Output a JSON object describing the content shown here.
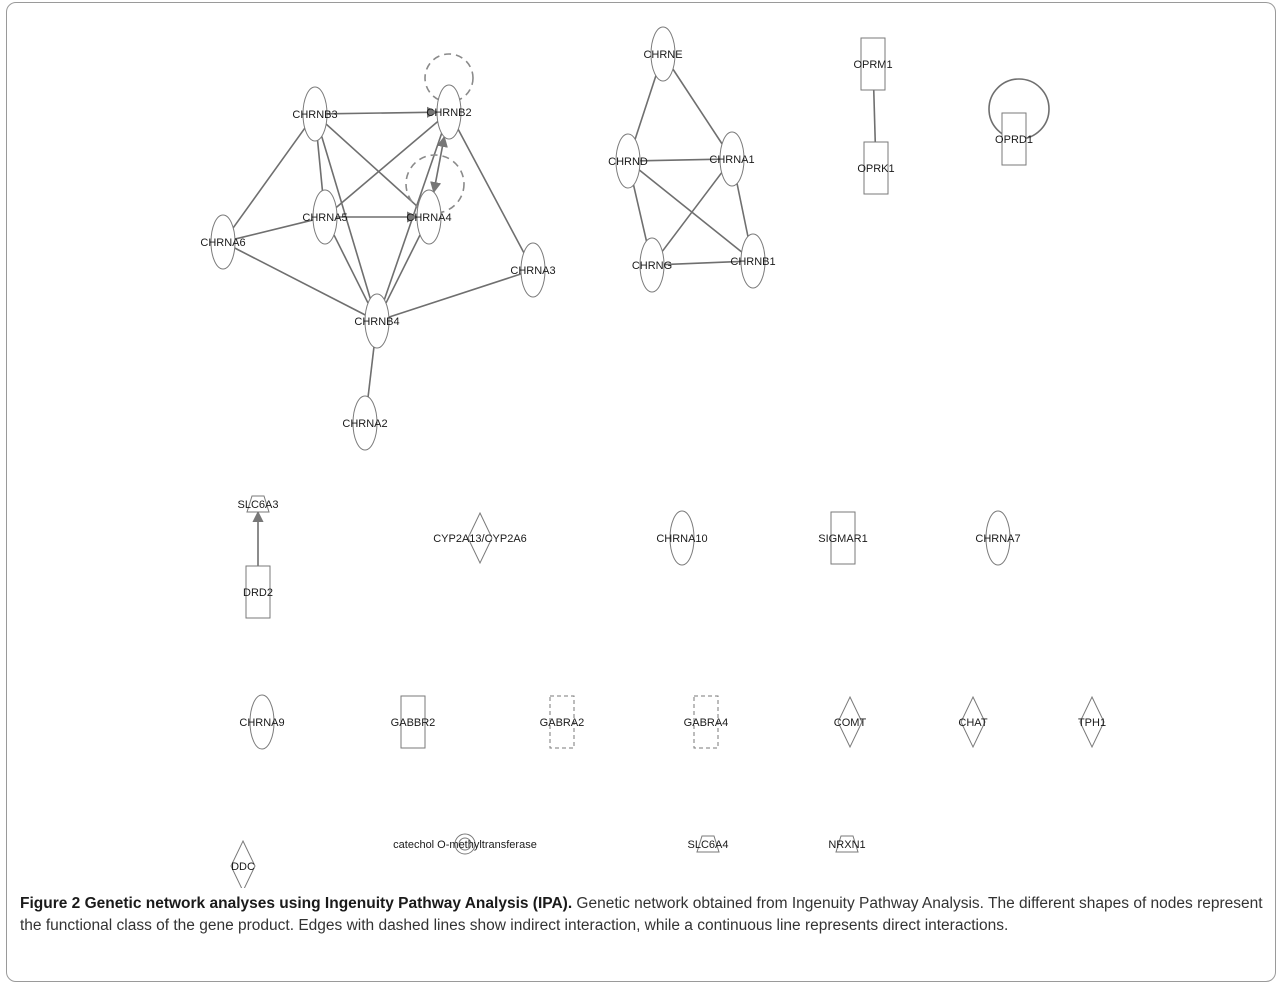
{
  "figure": {
    "caption_title": "Figure 2 Genetic network analyses using Ingenuity Pathway Analysis (IPA).",
    "caption_body": " Genetic network obtained from Ingenuity Pathway Analysis. The different shapes of nodes represent the functional class of the gene product. Edges with dashed lines show indirect interaction, while a continuous line represents direct interactions."
  },
  "network": {
    "nodes": [
      {
        "id": "CHRNB3",
        "label": "CHRNB3",
        "shape": "ellipse"
      },
      {
        "id": "CHRNB2",
        "label": "CHRNB2",
        "shape": "ellipse",
        "self_loop": "dashed"
      },
      {
        "id": "CHRNA5",
        "label": "CHRNA5",
        "shape": "ellipse"
      },
      {
        "id": "CHRNA4",
        "label": "CHRNA4",
        "shape": "ellipse",
        "self_loop": "dashed"
      },
      {
        "id": "CHRNA6",
        "label": "CHRNA6",
        "shape": "ellipse"
      },
      {
        "id": "CHRNA3",
        "label": "CHRNA3",
        "shape": "ellipse"
      },
      {
        "id": "CHRNB4",
        "label": "CHRNB4",
        "shape": "ellipse"
      },
      {
        "id": "CHRNA2",
        "label": "CHRNA2",
        "shape": "ellipse"
      },
      {
        "id": "CHRNE",
        "label": "CHRNE",
        "shape": "ellipse"
      },
      {
        "id": "CHRND",
        "label": "CHRND",
        "shape": "ellipse"
      },
      {
        "id": "CHRNA1",
        "label": "CHRNA1",
        "shape": "ellipse"
      },
      {
        "id": "CHRNG",
        "label": "CHRNG",
        "shape": "ellipse"
      },
      {
        "id": "CHRNB1",
        "label": "CHRNB1",
        "shape": "ellipse"
      },
      {
        "id": "OPRM1",
        "label": "OPRM1",
        "shape": "rect"
      },
      {
        "id": "OPRK1",
        "label": "OPRK1",
        "shape": "rect"
      },
      {
        "id": "OPRD1",
        "label": "OPRD1",
        "shape": "rect",
        "self_loop": "solid"
      },
      {
        "id": "SLC6A3",
        "label": "SLC6A3",
        "shape": "trapezoid"
      },
      {
        "id": "DRD2",
        "label": "DRD2",
        "shape": "rect"
      },
      {
        "id": "CYP2A13",
        "label": "CYP2A13/CYP2A6",
        "shape": "diamond"
      },
      {
        "id": "CHRNA10",
        "label": "CHRNA10",
        "shape": "ellipse"
      },
      {
        "id": "SIGMAR1",
        "label": "SIGMAR1",
        "shape": "rect"
      },
      {
        "id": "CHRNA7",
        "label": "CHRNA7",
        "shape": "ellipse"
      },
      {
        "id": "CHRNA9",
        "label": "CHRNA9",
        "shape": "ellipse"
      },
      {
        "id": "GABBR2",
        "label": "GABBR2",
        "shape": "rect"
      },
      {
        "id": "GABRA2",
        "label": "GABRA2",
        "shape": "rect-dashed"
      },
      {
        "id": "GABRA4",
        "label": "GABRA4",
        "shape": "rect-dashed"
      },
      {
        "id": "COMT",
        "label": "COMT",
        "shape": "diamond"
      },
      {
        "id": "CHAT",
        "label": "CHAT",
        "shape": "diamond"
      },
      {
        "id": "TPH1",
        "label": "TPH1",
        "shape": "diamond"
      },
      {
        "id": "DDC",
        "label": "DDC",
        "shape": "diamond"
      },
      {
        "id": "COMT_CHEM",
        "label": "catechol O-methyltransferase",
        "shape": "double-circle"
      },
      {
        "id": "SLC6A4",
        "label": "SLC6A4",
        "shape": "trapezoid"
      },
      {
        "id": "NRXN1",
        "label": "NRXN1",
        "shape": "trapezoid"
      }
    ],
    "edges": [
      {
        "from": "CHRNB3",
        "to": "CHRNB2",
        "style": "solid",
        "arrow": "end"
      },
      {
        "from": "CHRNB3",
        "to": "CHRNA6",
        "style": "solid"
      },
      {
        "from": "CHRNB3",
        "to": "CHRNA5",
        "style": "solid"
      },
      {
        "from": "CHRNB3",
        "to": "CHRNA4",
        "style": "solid"
      },
      {
        "from": "CHRNB3",
        "to": "CHRNB4",
        "style": "solid"
      },
      {
        "from": "CHRNB2",
        "to": "CHRNA4",
        "style": "solid",
        "arrow": "both"
      },
      {
        "from": "CHRNB2",
        "to": "CHRNA5",
        "style": "solid"
      },
      {
        "from": "CHRNB2",
        "to": "CHRNB4",
        "style": "solid"
      },
      {
        "from": "CHRNB2",
        "to": "CHRNA3",
        "style": "solid"
      },
      {
        "from": "CHRNA5",
        "to": "CHRNA4",
        "style": "solid",
        "arrow": "end"
      },
      {
        "from": "CHRNA5",
        "to": "CHRNA6",
        "style": "solid"
      },
      {
        "from": "CHRNA5",
        "to": "CHRNB4",
        "style": "solid"
      },
      {
        "from": "CHRNA4",
        "to": "CHRNB4",
        "style": "solid"
      },
      {
        "from": "CHRNA6",
        "to": "CHRNB4",
        "style": "solid"
      },
      {
        "from": "CHRNA3",
        "to": "CHRNB4",
        "style": "solid"
      },
      {
        "from": "CHRNB4",
        "to": "CHRNA2",
        "style": "solid"
      },
      {
        "from": "CHRNE",
        "to": "CHRND",
        "style": "solid"
      },
      {
        "from": "CHRNE",
        "to": "CHRNA1",
        "style": "solid"
      },
      {
        "from": "CHRND",
        "to": "CHRNA1",
        "style": "solid"
      },
      {
        "from": "CHRND",
        "to": "CHRNG",
        "style": "solid"
      },
      {
        "from": "CHRND",
        "to": "CHRNB1",
        "style": "solid"
      },
      {
        "from": "CHRNA1",
        "to": "CHRNG",
        "style": "solid"
      },
      {
        "from": "CHRNA1",
        "to": "CHRNB1",
        "style": "solid"
      },
      {
        "from": "CHRNG",
        "to": "CHRNB1",
        "style": "solid"
      },
      {
        "from": "OPRM1",
        "to": "OPRK1",
        "style": "solid"
      },
      {
        "from": "DRD2",
        "to": "SLC6A3",
        "style": "solid",
        "arrow": "end"
      }
    ]
  }
}
